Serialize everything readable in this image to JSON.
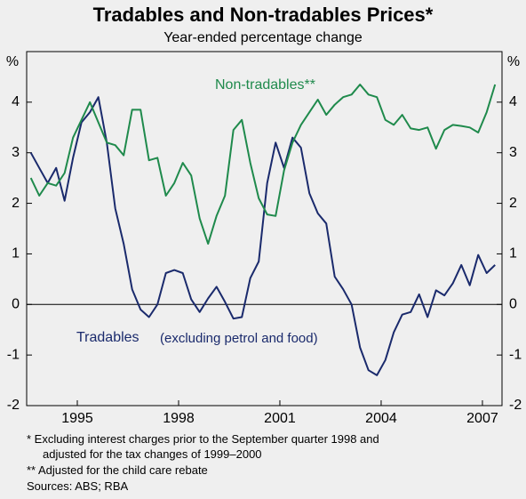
{
  "chart_data": {
    "type": "line",
    "title": "Tradables and Non-tradables Prices*",
    "subtitle": "Year-ended percentage change",
    "y_unit": "%",
    "annotation": "(excluding petrol and food)",
    "footnotes": [
      "*   Excluding interest charges prior to the September quarter 1998 and",
      "     adjusted for the tax changes of 1999–2000",
      "** Adjusted for the child care rebate",
      "Sources: ABS; RBA"
    ],
    "x": [
      1993.625,
      1993.875,
      1994.125,
      1994.375,
      1994.625,
      1994.875,
      1995.125,
      1995.375,
      1995.625,
      1995.875,
      1996.125,
      1996.375,
      1996.625,
      1996.875,
      1997.125,
      1997.375,
      1997.625,
      1997.875,
      1998.125,
      1998.375,
      1998.625,
      1998.875,
      1999.125,
      1999.375,
      1999.625,
      1999.875,
      2000.125,
      2000.375,
      2000.625,
      2000.875,
      2001.125,
      2001.375,
      2001.625,
      2001.875,
      2002.125,
      2002.375,
      2002.625,
      2002.875,
      2003.125,
      2003.375,
      2003.625,
      2003.875,
      2004.125,
      2004.375,
      2004.625,
      2004.875,
      2005.125,
      2005.375,
      2005.625,
      2005.875,
      2006.125,
      2006.375,
      2006.625,
      2006.875,
      2007.125,
      2007.375
    ],
    "series": [
      {
        "name": "Tradables",
        "color": "#1a2a6c",
        "values": [
          3.0,
          2.7,
          2.4,
          2.7,
          2.05,
          2.9,
          3.6,
          3.8,
          4.1,
          3.2,
          1.9,
          1.2,
          0.3,
          -0.1,
          -0.25,
          0.0,
          0.62,
          0.68,
          0.62,
          0.1,
          -0.15,
          0.12,
          0.35,
          0.05,
          -0.28,
          -0.25,
          0.52,
          0.85,
          2.4,
          3.2,
          2.7,
          3.3,
          3.1,
          2.2,
          1.8,
          1.6,
          0.55,
          0.3,
          0.0,
          -0.85,
          -1.3,
          -1.4,
          -1.1,
          -0.55,
          -0.2,
          -0.15,
          0.2,
          -0.25,
          0.28,
          0.18,
          0.42,
          0.78,
          0.38,
          0.98,
          0.62,
          0.78
        ]
      },
      {
        "name": "Non-tradables**",
        "color": "#1f8a4c",
        "values": [
          2.5,
          2.15,
          2.4,
          2.35,
          2.6,
          3.3,
          3.65,
          4.0,
          3.6,
          3.2,
          3.15,
          2.95,
          3.85,
          3.85,
          2.85,
          2.9,
          2.15,
          2.4,
          2.8,
          2.55,
          1.7,
          1.2,
          1.75,
          2.15,
          3.45,
          3.65,
          2.8,
          2.1,
          1.78,
          1.75,
          2.65,
          3.2,
          3.55,
          3.8,
          4.05,
          3.75,
          3.95,
          4.1,
          4.15,
          4.35,
          4.15,
          4.1,
          3.65,
          3.55,
          3.75,
          3.48,
          3.45,
          3.5,
          3.08,
          3.45,
          3.55,
          3.53,
          3.5,
          3.4,
          3.8,
          4.35
        ]
      }
    ],
    "xlim": [
      1993.5,
      2007.58
    ],
    "xticks": [
      1995,
      1998,
      2001,
      2004,
      2007
    ],
    "ylim": [
      -2,
      5
    ],
    "yticks": [
      -2,
      -1,
      0,
      1,
      2,
      3,
      4
    ],
    "zero_line": true
  }
}
